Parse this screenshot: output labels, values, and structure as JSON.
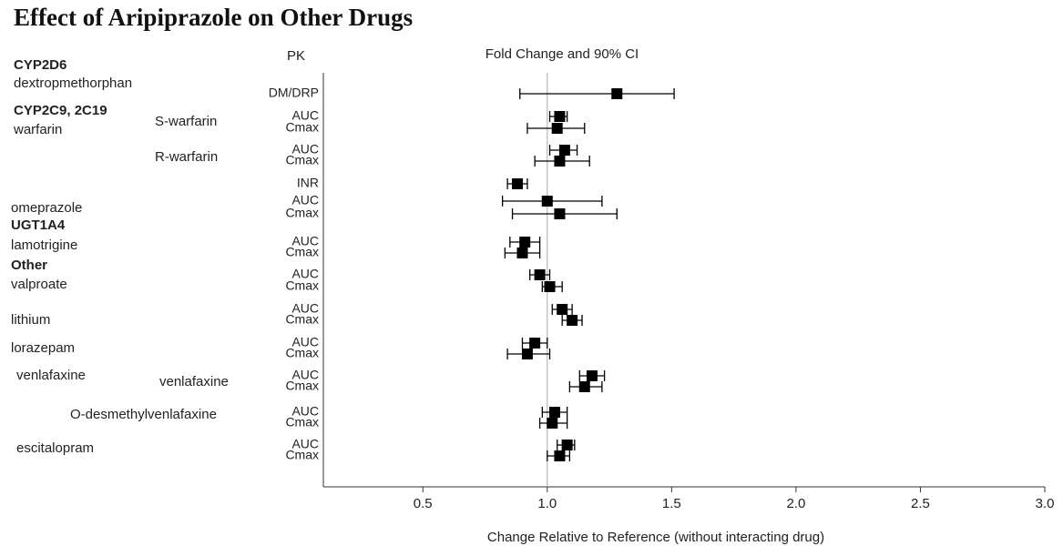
{
  "chart_data": {
    "type": "forest",
    "title": "Effect of Aripiprazole on Other Drugs",
    "pk_header": "PK",
    "ci_header": "Fold Change and 90% CI",
    "x_label": "Change Relative to Reference (without interacting drug)",
    "group_labels": [
      "CYP2D6",
      "dextropmethorphan",
      "CYP2C9, 2C19",
      "warfarin",
      "S-warfarin",
      "R-warfarin",
      "omeprazole",
      "UGT1A4",
      "lamotrigine",
      "Other",
      "valproate",
      "lithium",
      "lorazepam",
      "venlafaxine",
      "venlafaxine",
      "O-desmethylvenlafaxine",
      "escitalopram"
    ],
    "categories": [
      "DM/DRP",
      "AUC",
      "Cmax",
      "AUC",
      "Cmax",
      "INR",
      "AUC",
      "Cmax",
      "AUC",
      "Cmax",
      "AUC",
      "Cmax",
      "AUC",
      "Cmax",
      "AUC",
      "Cmax",
      "AUC",
      "Cmax",
      "AUC",
      "Cmax",
      "AUC",
      "Cmax"
    ],
    "values": [
      1.28,
      1.05,
      1.04,
      1.07,
      1.05,
      0.88,
      1.0,
      1.05,
      0.91,
      0.9,
      0.97,
      1.01,
      1.06,
      1.1,
      0.95,
      0.92,
      1.18,
      1.15,
      1.03,
      1.02,
      1.08,
      1.05
    ],
    "ci_low": [
      0.89,
      1.01,
      0.92,
      1.01,
      0.95,
      0.84,
      0.82,
      0.86,
      0.85,
      0.83,
      0.93,
      0.98,
      1.02,
      1.06,
      0.9,
      0.84,
      1.13,
      1.09,
      0.98,
      0.97,
      1.04,
      1.0
    ],
    "ci_high": [
      1.51,
      1.08,
      1.15,
      1.12,
      1.17,
      0.92,
      1.22,
      1.28,
      0.97,
      0.97,
      1.01,
      1.06,
      1.1,
      1.14,
      1.0,
      1.01,
      1.23,
      1.22,
      1.08,
      1.08,
      1.11,
      1.09
    ],
    "reference": 1.0,
    "color": "#000000",
    "xlim": [
      0.1,
      3.0
    ],
    "xticks": [
      0.5,
      {
        "value": 1.0,
        "label": "1.0"
      },
      1.5,
      {
        "value": 2.0,
        "label": "2.0"
      },
      2.5,
      {
        "value": 3.0,
        "label": "3.0"
      }
    ]
  }
}
